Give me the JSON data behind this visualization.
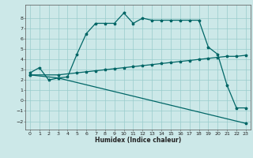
{
  "title": "",
  "xlabel": "Humidex (Indice chaleur)",
  "ylabel": "",
  "bg_color": "#cce8e8",
  "grid_color": "#99cccc",
  "line_color": "#006666",
  "xlim": [
    -0.5,
    23.5
  ],
  "ylim": [
    -2.8,
    9.3
  ],
  "xticks": [
    0,
    1,
    2,
    3,
    4,
    5,
    6,
    7,
    8,
    9,
    10,
    11,
    12,
    13,
    14,
    15,
    16,
    17,
    18,
    19,
    20,
    21,
    22,
    23
  ],
  "yticks": [
    -2,
    -1,
    0,
    1,
    2,
    3,
    4,
    5,
    6,
    7,
    8
  ],
  "curve1_x": [
    0,
    1,
    2,
    3,
    4,
    5,
    6,
    7,
    8,
    9,
    10,
    11,
    12,
    13,
    14,
    15,
    16,
    17,
    18,
    19,
    20,
    21,
    22,
    23
  ],
  "curve1_y": [
    2.7,
    3.2,
    2.0,
    2.2,
    2.3,
    4.5,
    6.5,
    7.5,
    7.5,
    7.5,
    8.5,
    7.5,
    8.0,
    7.8,
    7.8,
    7.8,
    7.8,
    7.8,
    7.8,
    5.2,
    4.5,
    1.5,
    -0.7,
    -0.7
  ],
  "curve2_x": [
    0,
    3,
    5,
    6,
    7,
    8,
    9,
    10,
    11,
    12,
    13,
    14,
    15,
    16,
    17,
    18,
    19,
    20,
    21,
    22,
    23
  ],
  "curve2_y": [
    2.5,
    2.5,
    2.7,
    2.8,
    2.9,
    3.0,
    3.1,
    3.2,
    3.3,
    3.4,
    3.5,
    3.6,
    3.7,
    3.8,
    3.9,
    4.0,
    4.1,
    4.2,
    4.3,
    4.3,
    4.4
  ],
  "curve3_x": [
    0,
    3,
    23
  ],
  "curve3_y": [
    2.5,
    2.2,
    -2.2
  ]
}
